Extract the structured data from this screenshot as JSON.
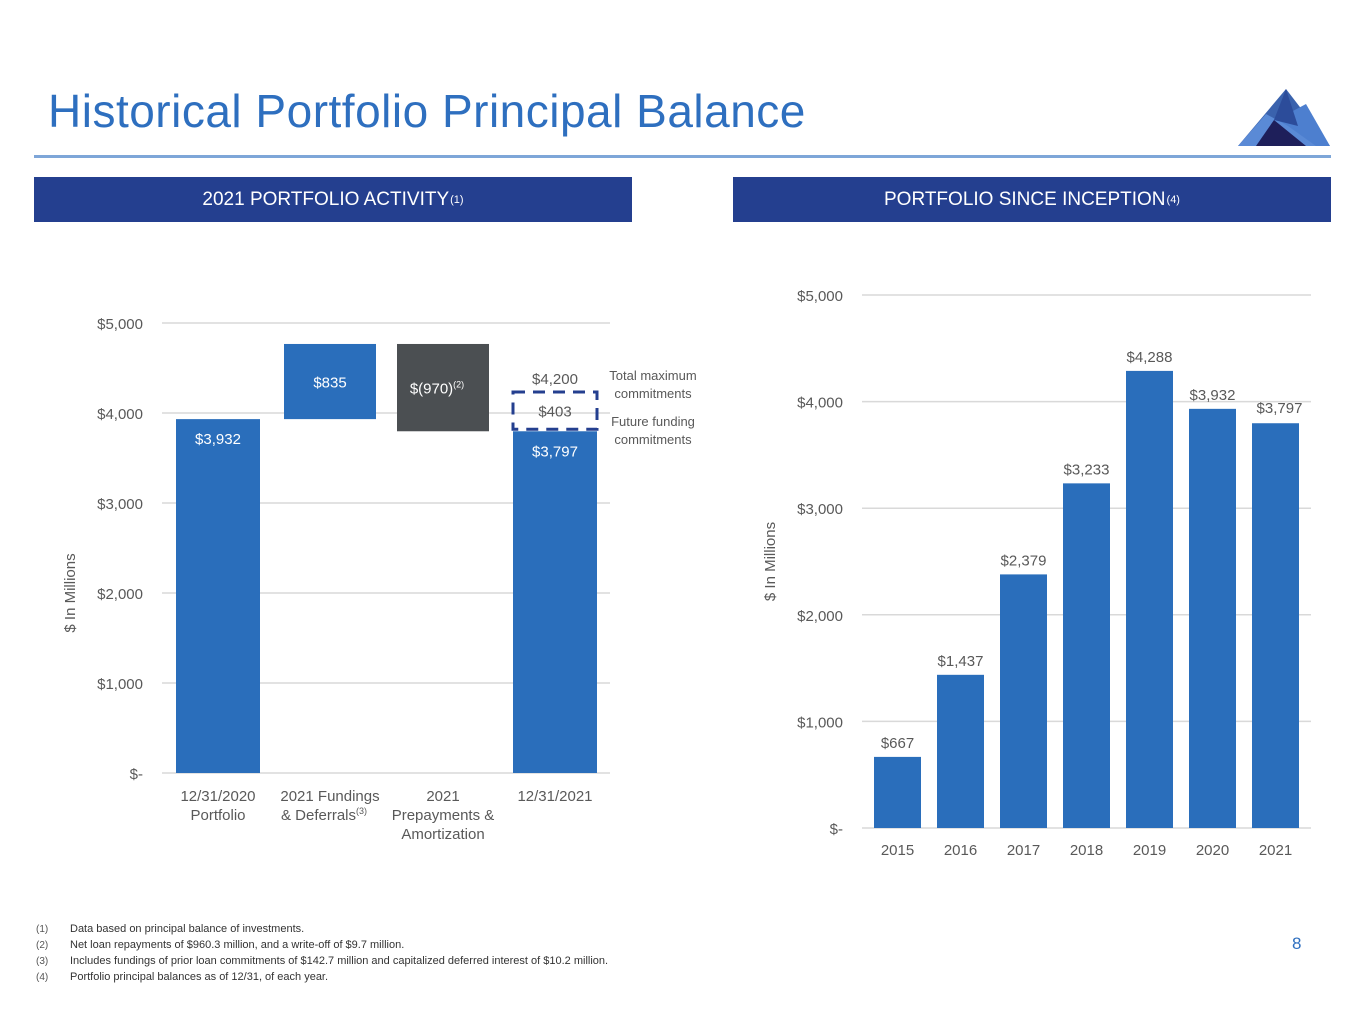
{
  "page": {
    "title": "Historical Portfolio Principal Balance",
    "page_number": "8",
    "colors": {
      "title": "#2e6fbf",
      "header_bg": "#243f8f",
      "bar_blue": "#2a6ebb",
      "bar_dark": "#4b4f52",
      "dashed": "#243f8f"
    },
    "logo_icon": "mountain-logo-icon"
  },
  "headers": {
    "left": {
      "label": "2021 PORTFOLIO ACTIVITY",
      "sup": "(1)"
    },
    "right": {
      "label": "PORTFOLIO SINCE INCEPTION",
      "sup": "(4)"
    }
  },
  "chart_data": [
    {
      "type": "bar",
      "subtype": "waterfall",
      "title": "2021 PORTFOLIO ACTIVITY(1)",
      "ylabel": "$ In Millions",
      "xlabel": "",
      "ylim": [
        0,
        5000
      ],
      "yticks": [
        0,
        1000,
        2000,
        3000,
        4000,
        5000
      ],
      "ytick_labels": [
        "$-",
        "$1,000",
        "$2,000",
        "$3,000",
        "$4,000",
        "$5,000"
      ],
      "grid": true,
      "categories": [
        {
          "lines": [
            "12/31/2020",
            "Portfolio"
          ],
          "sup": ""
        },
        {
          "lines": [
            "2021 Fundings",
            "& Deferrals"
          ],
          "sup": "(3)"
        },
        {
          "lines": [
            "2021",
            "Prepayments &",
            "Amortization"
          ],
          "sup": ""
        },
        {
          "lines": [
            "12/31/2021"
          ],
          "sup": ""
        }
      ],
      "bars": [
        {
          "kind": "total",
          "start": 0,
          "end": 3932,
          "label": "$3,932",
          "sup": ""
        },
        {
          "kind": "increase",
          "start": 3932,
          "end": 4767,
          "label": "$835",
          "sup": ""
        },
        {
          "kind": "decrease",
          "start": 3797,
          "end": 4767,
          "label": "$(970)",
          "sup": "(2)"
        },
        {
          "kind": "total",
          "start": 0,
          "end": 3797,
          "label": "$3,797",
          "sup": ""
        }
      ],
      "future_funding": {
        "start": 3797,
        "end": 4200,
        "label": "$403",
        "total_label": "$4,200"
      },
      "annotations": [
        {
          "text": [
            "Total maximum",
            "commitments"
          ]
        },
        {
          "text": [
            "Future funding",
            "commitments"
          ]
        }
      ]
    },
    {
      "type": "bar",
      "title": "PORTFOLIO SINCE INCEPTION(4)",
      "ylabel": "$ In Millions",
      "xlabel": "",
      "ylim": [
        0,
        5000
      ],
      "yticks": [
        0,
        1000,
        2000,
        3000,
        4000,
        5000
      ],
      "ytick_labels": [
        "$-",
        "$1,000",
        "$2,000",
        "$3,000",
        "$4,000",
        "$5,000"
      ],
      "grid": true,
      "categories": [
        "2015",
        "2016",
        "2017",
        "2018",
        "2019",
        "2020",
        "2021"
      ],
      "values": [
        667,
        1437,
        2379,
        3233,
        4288,
        3932,
        3797
      ],
      "labels": [
        "$667",
        "$1,437",
        "$2,379",
        "$3,233",
        "$4,288",
        "$3,932",
        "$3,797"
      ]
    }
  ],
  "footnotes": [
    {
      "num": "(1)",
      "text": "Data based on principal balance of investments."
    },
    {
      "num": "(2)",
      "text": "Net loan repayments of $960.3 million, and a write-off of $9.7 million."
    },
    {
      "num": "(3)",
      "text": "Includes fundings of prior loan commitments of $142.7 million and capitalized deferred interest of $10.2 million."
    },
    {
      "num": "(4)",
      "text": "Portfolio principal balances as of 12/31, of each year."
    }
  ]
}
